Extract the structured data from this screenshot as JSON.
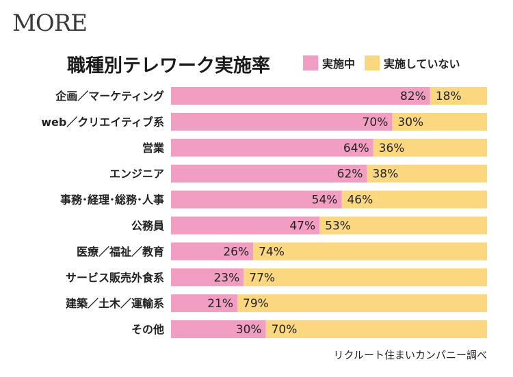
{
  "brand": {
    "logo_text": "MORE"
  },
  "chart_data": {
    "type": "bar",
    "orientation": "horizontal",
    "stacked": true,
    "title": "職種別テレワーク実施率",
    "categories": [
      "企画／マーケティング",
      "web／クリエイティブ系",
      "営業",
      "エンジニア",
      "事務･経理･総務･人事",
      "公務員",
      "医療／福祉／教育",
      "サービス販売外食系",
      "建築／土木／運輸系",
      "その他"
    ],
    "series": [
      {
        "name": "実施中",
        "color": "#f19ec2",
        "values": [
          82,
          70,
          64,
          62,
          54,
          47,
          26,
          23,
          21,
          30
        ]
      },
      {
        "name": "実施していない",
        "color": "#fbd87f",
        "values": [
          18,
          30,
          36,
          38,
          46,
          53,
          74,
          77,
          79,
          70
        ]
      }
    ],
    "value_suffix": "%",
    "xlim": [
      0,
      100
    ],
    "grid": false,
    "legend_position": "top-right"
  },
  "source": "リクルート住まいカンパニー調べ"
}
